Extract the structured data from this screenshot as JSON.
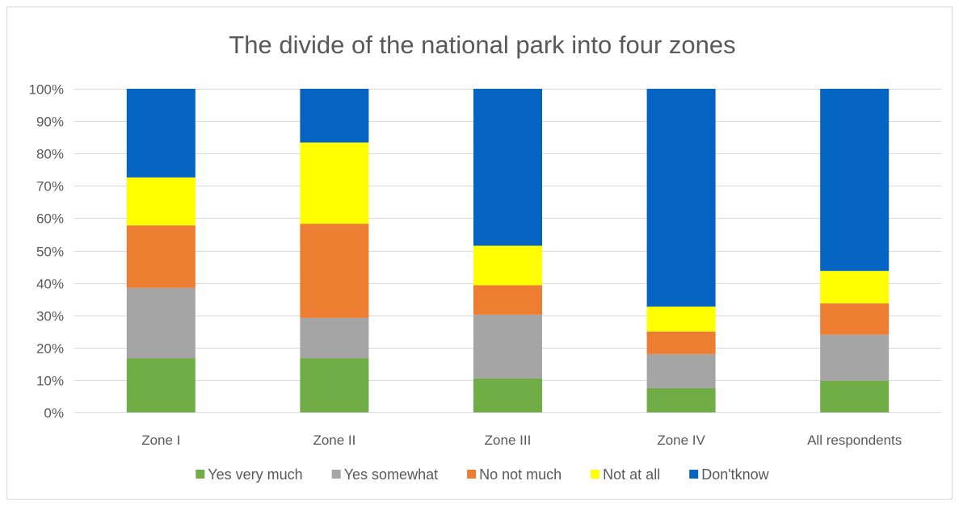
{
  "chart_data": {
    "type": "bar",
    "stacked": true,
    "title": "The divide of the national park into four zones",
    "categories": [
      "Zone I",
      "Zone II",
      "Zone III",
      "Zone IV",
      "All respondents"
    ],
    "ylim": [
      0,
      100
    ],
    "yticks": [
      "0%",
      "10%",
      "20%",
      "30%",
      "40%",
      "50%",
      "60%",
      "70%",
      "80%",
      "90%",
      "100%"
    ],
    "grid": true,
    "legend_position": "bottom",
    "series": [
      {
        "name": "Yes very much",
        "color": "#70ad47",
        "values": [
          16.7,
          16.7,
          10.5,
          7.5,
          9.8
        ]
      },
      {
        "name": "Yes somewhat",
        "color": "#a5a5a5",
        "values": [
          21.8,
          12.5,
          19.7,
          10.5,
          14.2
        ]
      },
      {
        "name": "No not much",
        "color": "#ed7d31",
        "values": [
          19.3,
          29.1,
          9.1,
          7.0,
          9.7
        ]
      },
      {
        "name": "Not at all",
        "color": "#ffff00",
        "values": [
          14.8,
          25.1,
          12.2,
          7.7,
          10.0
        ]
      },
      {
        "name": "Don'tknow",
        "color": "#0563c1",
        "values": [
          27.4,
          16.6,
          48.5,
          67.3,
          56.3
        ]
      }
    ]
  }
}
